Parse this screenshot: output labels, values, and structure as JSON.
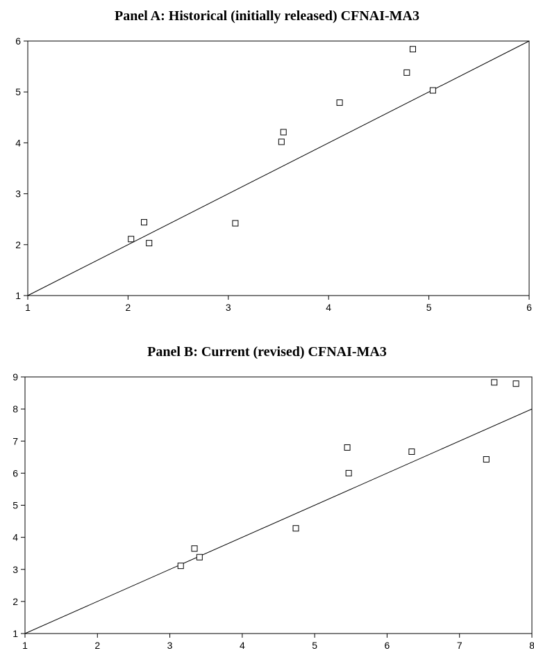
{
  "chart_data": [
    {
      "type": "scatter",
      "title": "Panel A: Historical (initially released) CFNAI-MA3",
      "xlim": [
        1,
        6
      ],
      "ylim": [
        1,
        6
      ],
      "xticks": [
        1,
        2,
        3,
        4,
        5,
        6
      ],
      "yticks": [
        1,
        2,
        3,
        4,
        5,
        6
      ],
      "xlabel": "",
      "ylabel": "",
      "grid": false,
      "marker": "open-square",
      "reference_line": {
        "from": [
          1,
          1
        ],
        "to": [
          6,
          6
        ]
      },
      "points": [
        {
          "x": 2.03,
          "y": 2.11
        },
        {
          "x": 2.16,
          "y": 2.44
        },
        {
          "x": 2.21,
          "y": 2.03
        },
        {
          "x": 3.07,
          "y": 2.42
        },
        {
          "x": 3.53,
          "y": 4.02
        },
        {
          "x": 3.55,
          "y": 4.21
        },
        {
          "x": 4.11,
          "y": 4.79
        },
        {
          "x": 4.78,
          "y": 5.38
        },
        {
          "x": 4.84,
          "y": 5.84
        },
        {
          "x": 5.04,
          "y": 5.03
        }
      ]
    },
    {
      "type": "scatter",
      "title": "Panel B: Current (revised) CFNAI-MA3",
      "xlim": [
        1,
        8
      ],
      "ylim": [
        1,
        9
      ],
      "xticks": [
        1,
        2,
        3,
        4,
        5,
        6,
        7,
        8
      ],
      "yticks": [
        1,
        2,
        3,
        4,
        5,
        6,
        7,
        8,
        9
      ],
      "xlabel": "",
      "ylabel": "",
      "grid": false,
      "marker": "open-square",
      "reference_line": {
        "from": [
          1,
          1
        ],
        "to": [
          8,
          8
        ]
      },
      "points": [
        {
          "x": 3.15,
          "y": 3.11
        },
        {
          "x": 3.34,
          "y": 3.65
        },
        {
          "x": 3.41,
          "y": 3.38
        },
        {
          "x": 4.74,
          "y": 4.28
        },
        {
          "x": 5.45,
          "y": 6.8
        },
        {
          "x": 5.47,
          "y": 6.0
        },
        {
          "x": 6.34,
          "y": 6.67
        },
        {
          "x": 7.37,
          "y": 6.43
        },
        {
          "x": 7.48,
          "y": 8.83
        },
        {
          "x": 7.78,
          "y": 8.79
        }
      ]
    }
  ]
}
